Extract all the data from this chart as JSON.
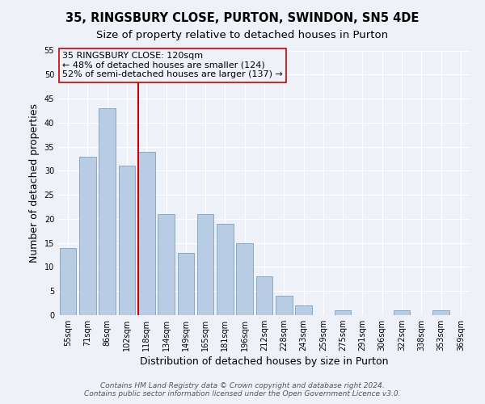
{
  "title": "35, RINGSBURY CLOSE, PURTON, SWINDON, SN5 4DE",
  "subtitle": "Size of property relative to detached houses in Purton",
  "xlabel": "Distribution of detached houses by size in Purton",
  "ylabel": "Number of detached properties",
  "bin_labels": [
    "55sqm",
    "71sqm",
    "86sqm",
    "102sqm",
    "118sqm",
    "134sqm",
    "149sqm",
    "165sqm",
    "181sqm",
    "196sqm",
    "212sqm",
    "228sqm",
    "243sqm",
    "259sqm",
    "275sqm",
    "291sqm",
    "306sqm",
    "322sqm",
    "338sqm",
    "353sqm",
    "369sqm"
  ],
  "bar_heights": [
    14,
    33,
    43,
    31,
    34,
    21,
    13,
    21,
    19,
    15,
    8,
    4,
    2,
    0,
    1,
    0,
    0,
    1,
    0,
    1,
    0
  ],
  "bar_color": "#b8cce4",
  "bar_edge_color": "#7f9fbe",
  "vline_index": 4,
  "vline_color": "#cc0000",
  "annotation_line1": "35 RINGSBURY CLOSE: 120sqm",
  "annotation_line2": "← 48% of detached houses are smaller (124)",
  "annotation_line3": "52% of semi-detached houses are larger (137) →",
  "annotation_box_edge_color": "#cc0000",
  "ylim": [
    0,
    55
  ],
  "yticks": [
    0,
    5,
    10,
    15,
    20,
    25,
    30,
    35,
    40,
    45,
    50,
    55
  ],
  "footer_line1": "Contains HM Land Registry data © Crown copyright and database right 2024.",
  "footer_line2": "Contains public sector information licensed under the Open Government Licence v3.0.",
  "bg_color": "#eef2f8",
  "plot_bg_color": "#eef2f8",
  "title_fontsize": 10.5,
  "subtitle_fontsize": 9.5,
  "axis_label_fontsize": 9,
  "tick_fontsize": 7,
  "annotation_fontsize": 8,
  "footer_fontsize": 6.5,
  "grid_color": "#ffffff"
}
